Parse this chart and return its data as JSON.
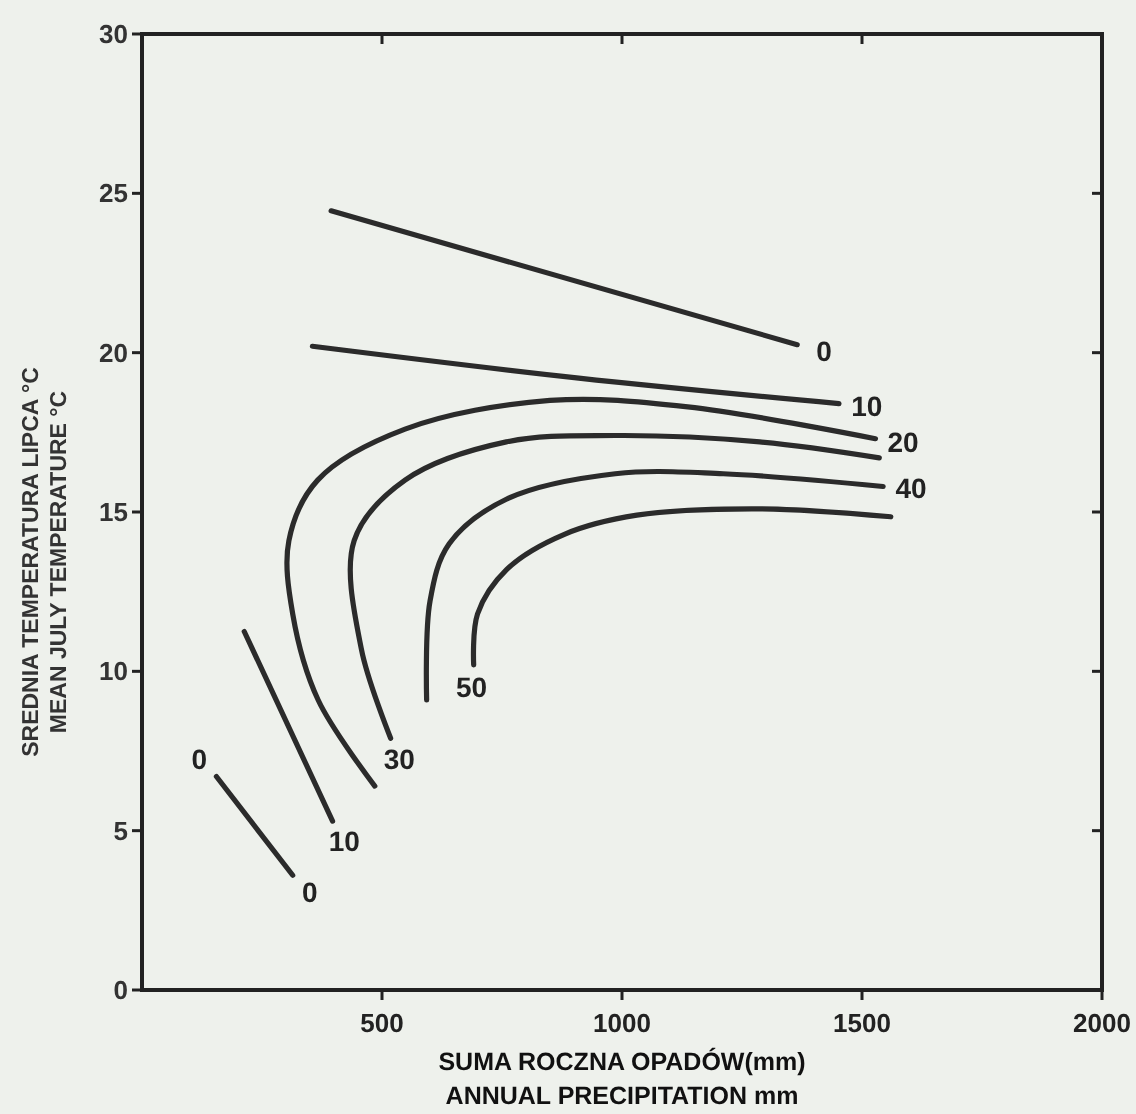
{
  "chart_data": {
    "type": "line",
    "xlabel": "SUMA ROCZNA OPADÓW(mm)\nANNUAL PRECIPITATION mm",
    "ylabel": "SREDNIA TEMPERATURA LIPCA °C\nMEAN JULY TEMPERATURE °C",
    "xlim": [
      0,
      2000
    ],
    "xticks": [
      500,
      1000,
      1500,
      2000
    ],
    "ylim": [
      0,
      30
    ],
    "yticks": [
      0,
      5,
      10,
      15,
      20,
      25,
      30
    ],
    "grid": false,
    "marker": "none",
    "line_style": "solid",
    "series": [
      {
        "color": "#2b2b2b",
        "x": [
          394,
          1365
        ],
        "values": [
          24.45,
          20.25
        ]
      },
      {
        "color": "#2b2b2b",
        "x": [
          355,
          910,
          1452
        ],
        "values": [
          20.2,
          19.2,
          18.4
        ]
      },
      {
        "color": "#2b2b2b",
        "x": [
          213,
          397
        ],
        "values": [
          11.25,
          5.3
        ]
      },
      {
        "color": "#2b2b2b",
        "x": [
          155,
          314
        ],
        "values": [
          6.7,
          3.6
        ]
      },
      {
        "color": "#2b2b2b",
        "x": [
          485,
          367,
          314,
          306,
          366,
          548,
          850,
          1137,
          1528
        ],
        "values": [
          6.4,
          9.1,
          11.8,
          14.1,
          16.0,
          17.6,
          18.5,
          18.3,
          17.3
        ]
      },
      {
        "color": "#2b2b2b",
        "x": [
          518,
          457,
          442,
          548,
          759,
          986,
          1287,
          1536
        ],
        "values": [
          7.9,
          10.7,
          14.1,
          16.0,
          17.2,
          17.4,
          17.2,
          16.7
        ]
      },
      {
        "color": "#2b2b2b",
        "x": [
          593,
          600,
          640,
          759,
          986,
          1211,
          1544
        ],
        "values": [
          9.1,
          12.2,
          14.0,
          15.4,
          16.2,
          16.2,
          15.8
        ]
      },
      {
        "color": "#2b2b2b",
        "x": [
          691,
          699,
          760,
          880,
          1031,
          1287,
          1560
        ],
        "values": [
          10.2,
          11.8,
          13.2,
          14.3,
          14.9,
          15.1,
          14.85
        ]
      }
    ],
    "annotations": [
      {
        "text": "0",
        "x": 1365,
        "y": 20.25
      },
      {
        "text": "10",
        "x": 1452,
        "y": 18.4
      },
      {
        "text": "20",
        "x": 1528,
        "y": 17.3
      },
      {
        "text": "40",
        "x": 1544,
        "y": 15.8
      },
      {
        "text": "0",
        "x": 155,
        "y": 6.7
      },
      {
        "text": "0",
        "x": 314,
        "y": 3.6
      },
      {
        "text": "10",
        "x": 397,
        "y": 5.3
      },
      {
        "text": "30",
        "x": 518,
        "y": 7.9
      },
      {
        "text": "50",
        "x": 691,
        "y": 10.2
      }
    ]
  }
}
